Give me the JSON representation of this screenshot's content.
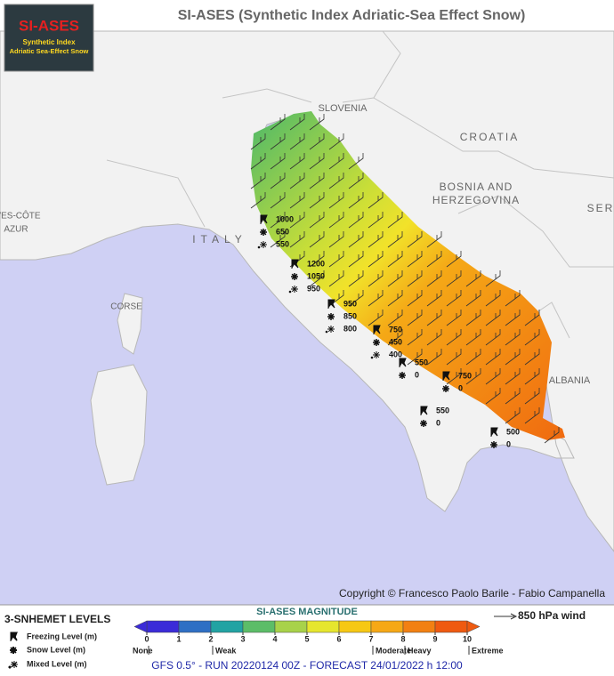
{
  "header": {
    "title": "SI-ASES (Synthetic Index Adriatic-Sea Effect Snow)",
    "logo": {
      "title": "SI-ASES",
      "line1": "Synthetic Index",
      "line2": "Adriatic Sea-Effect Snow"
    }
  },
  "map": {
    "labels": [
      "SLOVENIA",
      "CROATIA",
      "BOSNIA AND",
      "HERZEGOVINA",
      "ITALY",
      "CORSE",
      "ALBANIA",
      "VES-CÔTE",
      "AZUR",
      "SER"
    ],
    "stations": [
      {
        "freezing": 1000,
        "snow": 650,
        "mixed": 550
      },
      {
        "freezing": 1200,
        "snow": 1050,
        "mixed": 950
      },
      {
        "freezing": 950,
        "snow": 850,
        "mixed": 800
      },
      {
        "freezing": 750,
        "snow": 450,
        "mixed": 400
      },
      {
        "freezing": 550,
        "snow": 0
      },
      {
        "freezing": 750,
        "snow": 0
      },
      {
        "freezing": 550,
        "snow": 0
      },
      {
        "freezing": 500,
        "snow": 0
      }
    ],
    "copyright": "Copyright © Francesco Paolo Barile - Fabio Campanella"
  },
  "legend": {
    "levels_title": "3-SNHEMET LEVELS",
    "freezing": "Freezing Level (m)",
    "snow": "Snow Level (m)",
    "mixed": "Mixed Level (m)",
    "magnitude_title": "SI-ASES MAGNITUDE",
    "wind": "850 hPa wind",
    "colorbar": {
      "ticks": [
        0,
        1,
        2,
        3,
        4,
        5,
        6,
        7,
        8,
        9,
        10
      ],
      "colors": [
        "#3b2bd8",
        "#2e6fc4",
        "#22a3a3",
        "#5cbd68",
        "#a8d24a",
        "#e6e62e",
        "#f6c814",
        "#f6a816",
        "#f28012",
        "#ef5a10"
      ],
      "classes": [
        {
          "value": 0,
          "label": "None"
        },
        {
          "value": 2,
          "label": "Weak"
        },
        {
          "value": 7,
          "label": "Moderate"
        },
        {
          "value": 8,
          "label": "Heavy"
        },
        {
          "value": 10,
          "label": "Extreme"
        }
      ]
    }
  },
  "footer": "GFS 0.5° - RUN 20220124 00Z - FORECAST 24/01/2022 h 12:00"
}
